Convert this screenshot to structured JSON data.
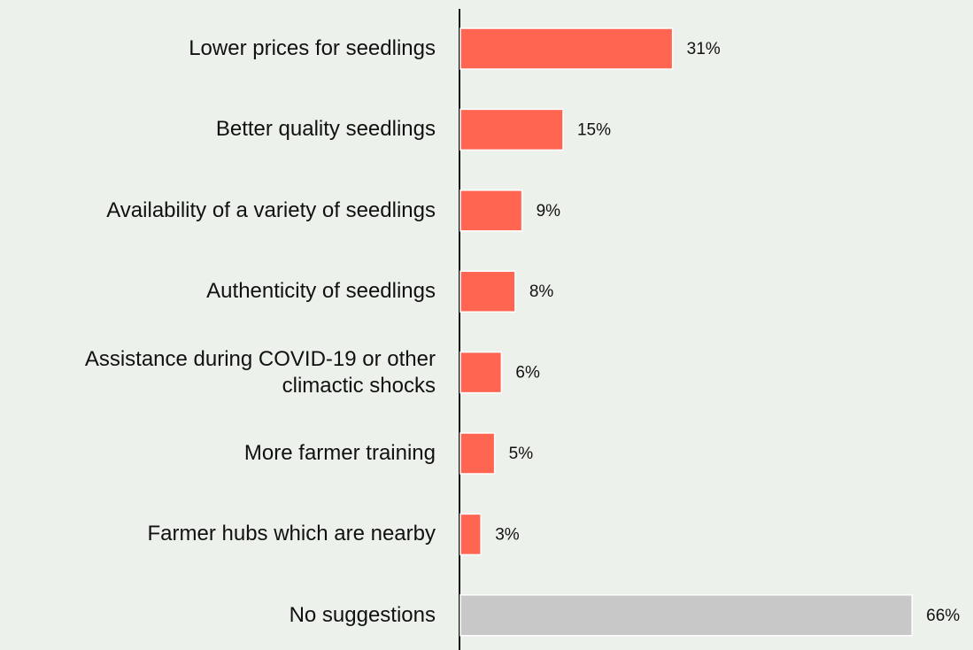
{
  "chart_data": {
    "type": "barh",
    "categories": [
      "Lower prices for seedlings",
      "Better quality seedlings",
      "Availability of a variety of seedlings",
      "Authenticity of seedlings",
      "Assistance during COVID-19 or other climactic shocks",
      "More farmer training",
      "Farmer hubs which are nearby",
      "No suggestions"
    ],
    "values": [
      31,
      15,
      9,
      8,
      6,
      5,
      3,
      66
    ],
    "value_labels": [
      "31%",
      "15%",
      "9%",
      "8%",
      "6%",
      "5%",
      "3%",
      "66%"
    ],
    "colors": [
      "#ff6551",
      "#ff6551",
      "#ff6551",
      "#ff6551",
      "#ff6551",
      "#ff6551",
      "#ff6551",
      "#c8c8c9"
    ]
  }
}
